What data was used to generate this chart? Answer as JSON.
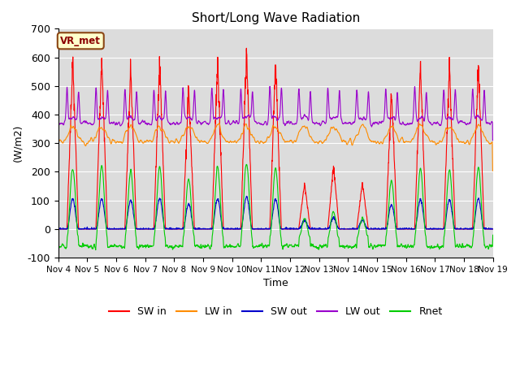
{
  "title": "Short/Long Wave Radiation",
  "ylabel": "(W/m2)",
  "xlabel": "Time",
  "annotation": "VR_met",
  "ylim": [
    -100,
    700
  ],
  "yticks": [
    -100,
    0,
    100,
    200,
    300,
    400,
    500,
    600,
    700
  ],
  "xtick_labels": [
    "Nov 4",
    "Nov 5",
    "Nov 6",
    "Nov 7",
    "Nov 8",
    "Nov 9",
    "Nov 10",
    "Nov 11",
    "Nov 12",
    "Nov 13",
    "Nov 14",
    "Nov 15",
    "Nov 16",
    "Nov 17",
    "Nov 18",
    "Nov 19"
  ],
  "colors": {
    "SW_in": "#ff0000",
    "LW_in": "#ff8c00",
    "SW_out": "#0000cc",
    "LW_out": "#9900cc",
    "Rnet": "#00cc00"
  },
  "legend_labels": [
    "SW in",
    "LW in",
    "SW out",
    "LW out",
    "Rnet"
  ],
  "background_color": "#dcdcdc",
  "n_days": 15,
  "pts_per_day": 144,
  "day_peaks_SW": [
    590,
    590,
    560,
    590,
    490,
    580,
    630,
    580,
    160,
    220,
    165,
    470,
    570,
    570,
    580
  ],
  "lw_out_base": 370,
  "lw_in_base": 305
}
